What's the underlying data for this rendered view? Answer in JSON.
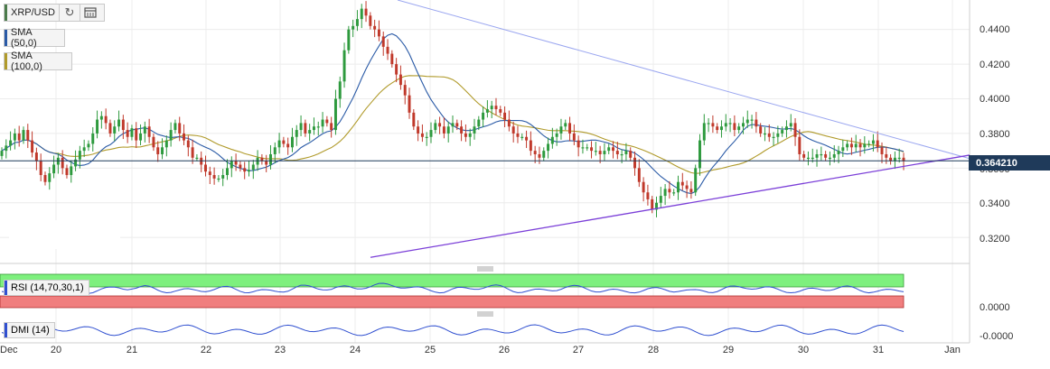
{
  "toolbar": {
    "symbol": "XRP/USD",
    "refresh_icon": "refresh-icon",
    "calendar_icon": "calendar-icon"
  },
  "indicators": {
    "sma50": {
      "label": "SMA (50,0)",
      "color": "#2a5aa6"
    },
    "sma100": {
      "label": "SMA (100,0)",
      "color": "#b09a2a"
    },
    "rsi": {
      "label": "RSI (14,70,30,1)",
      "color": "#2f4fd0"
    },
    "dmi": {
      "label": "DMI (14)",
      "color": "#2f4fd0"
    }
  },
  "colors": {
    "up": "#2e9a3e",
    "down": "#c0392b",
    "trendline_upper": "#9aa6f0",
    "trendline_lower": "#7b3fd8",
    "rsi_overbought": "#7ef07e",
    "rsi_oversold": "#f07e7e"
  },
  "price_axis": {
    "ticks": [
      "0.4400",
      "0.4200",
      "0.4000",
      "0.3800",
      "0.3600",
      "0.3400",
      "0.3200"
    ],
    "current_price": "0.364210"
  },
  "rsi_axis": {
    "tick": "0.0000"
  },
  "dmi_axis": {
    "tick": "-0.0000"
  },
  "x_axis": {
    "labels": [
      "Dec",
      "20",
      "21",
      "22",
      "23",
      "24",
      "25",
      "26",
      "27",
      "28",
      "29",
      "30",
      "31",
      "Jan"
    ]
  },
  "chart_data": {
    "type": "candlestick",
    "symbol": "XRP/USD",
    "ylim": [
      0.305,
      0.457
    ],
    "current_price": 0.36421,
    "closes": [
      0.37,
      0.373,
      0.376,
      0.38,
      0.376,
      0.382,
      0.376,
      0.369,
      0.364,
      0.356,
      0.352,
      0.357,
      0.362,
      0.366,
      0.36,
      0.356,
      0.361,
      0.365,
      0.37,
      0.372,
      0.374,
      0.38,
      0.388,
      0.39,
      0.386,
      0.38,
      0.384,
      0.388,
      0.382,
      0.378,
      0.383,
      0.376,
      0.38,
      0.384,
      0.378,
      0.372,
      0.368,
      0.372,
      0.376,
      0.382,
      0.386,
      0.38,
      0.376,
      0.372,
      0.366,
      0.366,
      0.362,
      0.358,
      0.356,
      0.354,
      0.354,
      0.356,
      0.36,
      0.364,
      0.362,
      0.36,
      0.358,
      0.359,
      0.362,
      0.366,
      0.364,
      0.362,
      0.368,
      0.372,
      0.376,
      0.374,
      0.372,
      0.378,
      0.382,
      0.386,
      0.38,
      0.382,
      0.384,
      0.384,
      0.388,
      0.386,
      0.382,
      0.4,
      0.41,
      0.428,
      0.44,
      0.442,
      0.446,
      0.452,
      0.448,
      0.442,
      0.44,
      0.436,
      0.43,
      0.426,
      0.42,
      0.414,
      0.408,
      0.402,
      0.392,
      0.384,
      0.38,
      0.378,
      0.378,
      0.382,
      0.386,
      0.384,
      0.38,
      0.384,
      0.386,
      0.384,
      0.38,
      0.378,
      0.38,
      0.384,
      0.388,
      0.392,
      0.394,
      0.396,
      0.394,
      0.392,
      0.388,
      0.384,
      0.38,
      0.378,
      0.378,
      0.376,
      0.37,
      0.368,
      0.366,
      0.37,
      0.374,
      0.378,
      0.38,
      0.384,
      0.386,
      0.38,
      0.376,
      0.372,
      0.372,
      0.372,
      0.37,
      0.37,
      0.368,
      0.37,
      0.372,
      0.37,
      0.368,
      0.368,
      0.37,
      0.366,
      0.36,
      0.352,
      0.346,
      0.342,
      0.336,
      0.34,
      0.344,
      0.348,
      0.346,
      0.346,
      0.352,
      0.35,
      0.348,
      0.346,
      0.36,
      0.376,
      0.386,
      0.386,
      0.384,
      0.382,
      0.384,
      0.386,
      0.386,
      0.382,
      0.384,
      0.386,
      0.388,
      0.388,
      0.384,
      0.38,
      0.38,
      0.378,
      0.378,
      0.38,
      0.382,
      0.384,
      0.386,
      0.378,
      0.368,
      0.366,
      0.366,
      0.366,
      0.368,
      0.368,
      0.366,
      0.366,
      0.368,
      0.37,
      0.372,
      0.374,
      0.372,
      0.374,
      0.372,
      0.374,
      0.374,
      0.376,
      0.372,
      0.368,
      0.366,
      0.364,
      0.366,
      0.366,
      0.364
    ]
  }
}
